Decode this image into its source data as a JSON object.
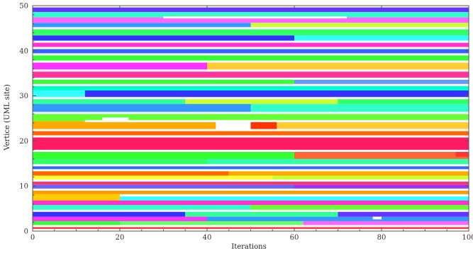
{
  "chart_data": {
    "type": "heatmap",
    "title": "",
    "xlabel": "Iterations",
    "ylabel": "Vertice (UML site)",
    "xlim": [
      0,
      100
    ],
    "ylim": [
      0,
      50
    ],
    "x_ticks": [
      0,
      20,
      40,
      60,
      80,
      100
    ],
    "y_ticks": [
      0,
      10,
      20,
      30,
      40,
      50
    ],
    "grid": false,
    "legend": "none",
    "colormap": "hue",
    "bands": [
      {
        "y0": 0.5,
        "y1": 1.2,
        "segments": [
          [
            0,
            100,
            "#ff2a2a"
          ]
        ]
      },
      {
        "y0": 1.2,
        "y1": 2.2,
        "segments": [
          [
            0,
            20,
            "#33ff33"
          ],
          [
            20,
            62,
            "#66ff66"
          ],
          [
            62,
            100,
            "#ff66ff"
          ]
        ]
      },
      {
        "y0": 2.2,
        "y1": 3.2,
        "segments": [
          [
            0,
            40,
            "#ff33ff"
          ],
          [
            40,
            100,
            "#3399ff"
          ]
        ]
      },
      {
        "y0": 3.2,
        "y1": 4.5,
        "segments": [
          [
            0,
            35,
            "#3333ff"
          ],
          [
            35,
            70,
            "#33ff99"
          ],
          [
            70,
            100,
            "#6633ff"
          ]
        ]
      },
      {
        "y0": 4.5,
        "y1": 5.8,
        "segments": [
          [
            0,
            50,
            "#33ffcc"
          ],
          [
            50,
            100,
            "#66ff33"
          ]
        ]
      },
      {
        "y0": 5.8,
        "y1": 6.8,
        "segments": [
          [
            0,
            100,
            "#ff33cc"
          ]
        ]
      },
      {
        "y0": 6.8,
        "y1": 8.2,
        "segments": [
          [
            0,
            20,
            "#ffcc00"
          ],
          [
            20,
            100,
            "#33ffff"
          ]
        ]
      },
      {
        "y0": 8.2,
        "y1": 9.2,
        "segments": [
          [
            0,
            100,
            "#ff9900"
          ]
        ]
      },
      {
        "y0": 9.2,
        "y1": 10.3,
        "segments": [
          [
            0,
            60,
            "#6666ff"
          ],
          [
            60,
            100,
            "#9933ff"
          ]
        ]
      },
      {
        "y0": 10.3,
        "y1": 11.2,
        "segments": [
          [
            0,
            100,
            "#ff3366"
          ]
        ]
      },
      {
        "y0": 11.2,
        "y1": 12.3,
        "segments": [
          [
            0,
            55,
            "#ffff33"
          ],
          [
            55,
            100,
            "#ccff33"
          ]
        ]
      },
      {
        "y0": 12.3,
        "y1": 13.5,
        "segments": [
          [
            0,
            45,
            "#ff6600"
          ],
          [
            45,
            100,
            "#ffaa00"
          ]
        ]
      },
      {
        "y0": 13.5,
        "y1": 14.6,
        "segments": [
          [
            0,
            100,
            "#3366ff"
          ]
        ]
      },
      {
        "y0": 14.6,
        "y1": 16.0,
        "segments": [
          [
            0,
            40,
            "#33ff66"
          ],
          [
            40,
            100,
            "#33ffaa"
          ]
        ]
      },
      {
        "y0": 16.0,
        "y1": 17.8,
        "segments": [
          [
            0,
            60,
            "#33ff33"
          ],
          [
            60,
            100,
            "#ff6633"
          ]
        ]
      },
      {
        "y0": 17.8,
        "y1": 21.0,
        "segments": [
          [
            0,
            100,
            "#ff1a66"
          ]
        ]
      },
      {
        "y0": 21.0,
        "y1": 22.4,
        "segments": [
          [
            0,
            100,
            "#ff6600"
          ]
        ]
      },
      {
        "y0": 22.4,
        "y1": 24.4,
        "segments": [
          [
            0,
            42,
            "#ffaa00"
          ],
          [
            42,
            56,
            "#ff3300"
          ],
          [
            56,
            100,
            "#ffcc33"
          ]
        ]
      },
      {
        "y0": 24.4,
        "y1": 26.2,
        "segments": [
          [
            0,
            100,
            "#66ff33"
          ]
        ]
      },
      {
        "y0": 26.2,
        "y1": 28.2,
        "segments": [
          [
            0,
            50,
            "#3399ff"
          ],
          [
            50,
            100,
            "#33ffcc"
          ]
        ]
      },
      {
        "y0": 28.2,
        "y1": 29.5,
        "segments": [
          [
            0,
            35,
            "#33ff99"
          ],
          [
            35,
            70,
            "#ccff33"
          ],
          [
            70,
            100,
            "#33ff66"
          ]
        ]
      },
      {
        "y0": 29.5,
        "y1": 31.2,
        "segments": [
          [
            0,
            12,
            "#33ffff"
          ],
          [
            12,
            100,
            "#3333ff"
          ]
        ]
      },
      {
        "y0": 31.2,
        "y1": 32.4,
        "segments": [
          [
            0,
            100,
            "#00ffcc"
          ]
        ]
      },
      {
        "y0": 32.4,
        "y1": 33.8,
        "segments": [
          [
            0,
            60,
            "#33ff33"
          ],
          [
            60,
            100,
            "#6699ff"
          ]
        ]
      },
      {
        "y0": 33.8,
        "y1": 35.6,
        "segments": [
          [
            0,
            100,
            "#ff3399"
          ]
        ]
      },
      {
        "y0": 35.6,
        "y1": 37.6,
        "segments": [
          [
            0,
            40,
            "#ff33ff"
          ],
          [
            40,
            100,
            "#ffcc33"
          ]
        ]
      },
      {
        "y0": 37.6,
        "y1": 39.2,
        "segments": [
          [
            0,
            100,
            "#33ff33"
          ]
        ]
      },
      {
        "y0": 39.2,
        "y1": 40.6,
        "segments": [
          [
            0,
            100,
            "#3366ff"
          ]
        ]
      },
      {
        "y0": 40.6,
        "y1": 42.0,
        "segments": [
          [
            0,
            100,
            "#ff33cc"
          ]
        ]
      },
      {
        "y0": 42.0,
        "y1": 43.4,
        "segments": [
          [
            0,
            60,
            "#3333ff"
          ],
          [
            60,
            100,
            "#33ffff"
          ]
        ]
      },
      {
        "y0": 43.4,
        "y1": 44.8,
        "segments": [
          [
            0,
            100,
            "#33ff66"
          ]
        ]
      },
      {
        "y0": 44.8,
        "y1": 46.2,
        "segments": [
          [
            0,
            50,
            "#3399ff"
          ],
          [
            50,
            100,
            "#ccff33"
          ]
        ]
      },
      {
        "y0": 46.2,
        "y1": 47.4,
        "segments": [
          [
            0,
            100,
            "#ff66ff"
          ]
        ]
      },
      {
        "y0": 47.4,
        "y1": 48.6,
        "segments": [
          [
            0,
            100,
            "#33ffcc"
          ]
        ]
      },
      {
        "y0": 48.6,
        "y1": 49.6,
        "segments": [
          [
            0,
            100,
            "#6633ff"
          ]
        ]
      }
    ],
    "gaps": [
      {
        "y": 1.1,
        "x0": 0,
        "x1": 100
      },
      {
        "y": 4.5,
        "x0": 0,
        "x1": 100
      },
      {
        "y": 7.9,
        "x0": 20,
        "x1": 100
      },
      {
        "y": 9.2,
        "x0": 0,
        "x1": 100
      },
      {
        "y": 11.2,
        "x0": 0,
        "x1": 100
      },
      {
        "y": 13.5,
        "x0": 0,
        "x1": 100
      },
      {
        "y": 14.6,
        "x0": 0,
        "x1": 100
      },
      {
        "y": 17.8,
        "x0": 0,
        "x1": 100
      },
      {
        "y": 21.0,
        "x0": 0,
        "x1": 100
      },
      {
        "y": 22.4,
        "x0": 0,
        "x1": 100
      },
      {
        "y": 24.4,
        "x0": 12,
        "x1": 100
      },
      {
        "y": 26.2,
        "x0": 0,
        "x1": 100
      },
      {
        "y": 29.5,
        "x0": 0,
        "x1": 100
      },
      {
        "y": 32.4,
        "x0": 0,
        "x1": 100
      },
      {
        "y": 33.8,
        "x0": 0,
        "x1": 100
      },
      {
        "y": 35.6,
        "x0": 0,
        "x1": 100
      },
      {
        "y": 37.6,
        "x0": 0,
        "x1": 100
      },
      {
        "y": 39.2,
        "x0": 0,
        "x1": 100
      },
      {
        "y": 40.6,
        "x0": 0,
        "x1": 100
      },
      {
        "y": 42.0,
        "x0": 0,
        "x1": 100
      },
      {
        "y": 45.0,
        "x0": 0,
        "x1": 100
      },
      {
        "y": 47.4,
        "x0": 30,
        "x1": 72
      }
    ],
    "patches": [
      {
        "x0": 42,
        "x1": 50,
        "y0": 22.4,
        "y1": 24.4,
        "color": "#ffffff"
      },
      {
        "x0": 97,
        "x1": 100,
        "y0": 16.5,
        "y1": 17.8,
        "color": "#ff3333"
      },
      {
        "x0": 16,
        "x1": 22,
        "y0": 24.4,
        "y1": 25.2,
        "color": "#ffffff"
      },
      {
        "x0": 78,
        "x1": 80,
        "y0": 2.6,
        "y1": 3.2,
        "color": "#ffffff"
      }
    ]
  }
}
